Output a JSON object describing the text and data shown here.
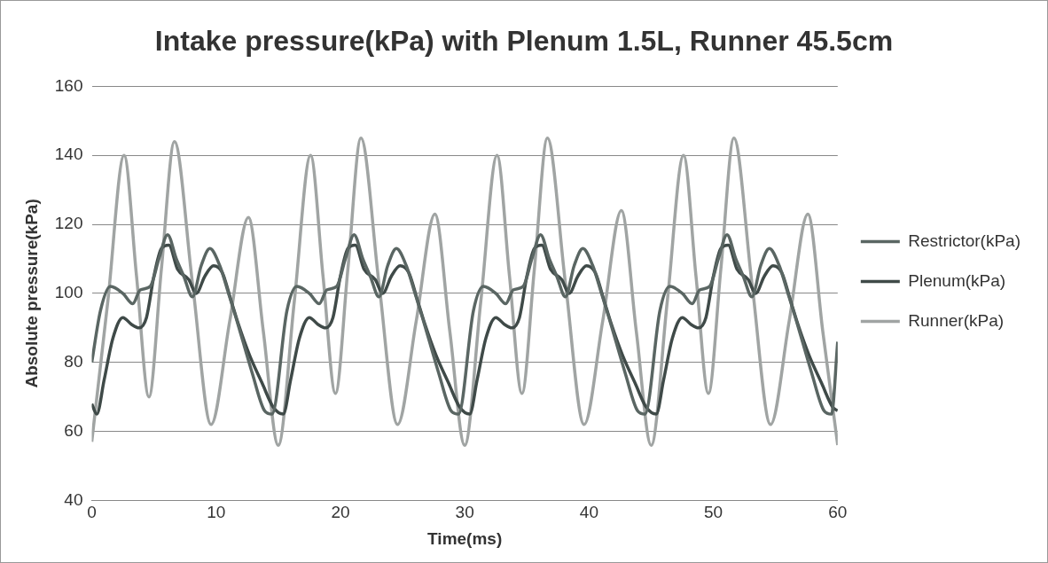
{
  "chart_data": {
    "type": "line",
    "title": "Intake pressure(kPa) with Plenum 1.5L, Runner 45.5cm",
    "xlabel": "Time(ms)",
    "ylabel": "Absolute pressure(kPa)",
    "xlim": [
      0,
      60
    ],
    "xticks": [
      0,
      10,
      20,
      30,
      40,
      50,
      60
    ],
    "ylim": [
      40,
      160
    ],
    "yticks": [
      40,
      60,
      80,
      100,
      120,
      140,
      160
    ],
    "grid": "y",
    "legend": "right",
    "marker": "none",
    "line_style": "solid",
    "series": [
      {
        "name": "Restrictor(kPa)",
        "color": "#5a6663",
        "x": [
          0,
          0.7,
          1.5,
          2.5,
          3.3,
          3.9,
          4.7,
          5.4,
          6.1,
          6.8,
          7.4,
          8.1,
          8.8,
          9.5,
          10.3,
          11,
          11.6,
          12.9,
          13.9,
          14.5,
          15.7,
          16.5,
          17.5,
          18.3,
          18.9,
          19.7,
          20.4,
          21.1,
          21.8,
          22.4,
          23.1,
          23.8,
          24.5,
          25.3,
          26,
          26.6,
          27.9,
          28.9,
          29.5,
          30.7,
          31.5,
          32.5,
          33.3,
          33.9,
          34.7,
          35.4,
          36.1,
          36.8,
          37.4,
          38.1,
          38.8,
          39.5,
          40.3,
          41,
          41.6,
          42.9,
          43.9,
          44.5,
          45.7,
          46.5,
          47.5,
          48.3,
          48.9,
          49.7,
          50.4,
          51.1,
          51.8,
          52.4,
          53.1,
          53.8,
          54.5,
          55.3,
          56,
          56.6,
          57.9,
          58.9,
          59.5,
          60
        ],
        "values": [
          80,
          95,
          102,
          100,
          97,
          101,
          102,
          110,
          117,
          110,
          105,
          99,
          108,
          113,
          108,
          100,
          93,
          77,
          66,
          65,
          95,
          102,
          100,
          97,
          101,
          102,
          110,
          117,
          110,
          105,
          99,
          108,
          113,
          108,
          100,
          93,
          77,
          66,
          65,
          95,
          102,
          100,
          97,
          101,
          102,
          110,
          117,
          110,
          105,
          99,
          108,
          113,
          108,
          100,
          93,
          77,
          66,
          65,
          95,
          102,
          100,
          97,
          101,
          102,
          110,
          117,
          110,
          105,
          99,
          108,
          113,
          108,
          100,
          93,
          77,
          66,
          65,
          86
        ]
      },
      {
        "name": "Plenum(kPa)",
        "color": "#3f4a48",
        "x": [
          0,
          0.4,
          1,
          1.7,
          2.5,
          3.2,
          3.8,
          4.4,
          5,
          5.6,
          6.2,
          6.9,
          7.8,
          8.4,
          9.1,
          9.8,
          10.5,
          11.2,
          11.8,
          12.7,
          13.7,
          14.6,
          15.4,
          16,
          16.7,
          17.5,
          18.2,
          18.8,
          19.4,
          20,
          20.6,
          21.2,
          21.9,
          22.8,
          23.4,
          24.1,
          24.8,
          25.5,
          26.2,
          26.8,
          27.7,
          28.7,
          29.6,
          30.4,
          31,
          31.7,
          32.5,
          33.2,
          33.8,
          34.4,
          35,
          35.6,
          36.2,
          36.9,
          37.8,
          38.4,
          39.1,
          39.8,
          40.5,
          41.2,
          41.8,
          42.7,
          43.7,
          44.6,
          45.4,
          46,
          46.7,
          47.5,
          48.2,
          48.8,
          49.4,
          50,
          50.6,
          51.2,
          51.9,
          52.8,
          53.4,
          54.1,
          54.8,
          55.5,
          56.2,
          56.8,
          57.7,
          58.7,
          59.6,
          60
        ],
        "values": [
          68,
          65,
          75,
          87,
          93,
          91,
          90,
          93,
          105,
          113,
          114,
          107,
          104,
          100,
          105,
          108,
          106,
          98,
          91,
          82,
          74,
          67,
          65,
          75,
          87,
          93,
          91,
          90,
          93,
          105,
          113,
          114,
          107,
          104,
          100,
          105,
          108,
          106,
          98,
          91,
          82,
          74,
          67,
          65,
          75,
          87,
          93,
          91,
          90,
          93,
          105,
          113,
          114,
          107,
          104,
          100,
          105,
          108,
          106,
          98,
          91,
          82,
          74,
          67,
          65,
          75,
          87,
          93,
          91,
          90,
          93,
          105,
          113,
          114,
          107,
          104,
          100,
          105,
          108,
          106,
          98,
          91,
          82,
          74,
          67,
          66
        ]
      },
      {
        "name": "Runner(kPa)",
        "color": "#a0a4a3",
        "x": [
          0,
          1.3,
          2.6,
          3.6,
          4.6,
          5.6,
          6.65,
          8.1,
          9.6,
          11.1,
          12.6,
          13.8,
          15,
          16.3,
          17.6,
          18.6,
          19.6,
          20.6,
          21.65,
          23.1,
          24.6,
          26.1,
          27.6,
          28.8,
          30,
          31.3,
          32.6,
          33.6,
          34.6,
          35.6,
          36.65,
          38.1,
          39.6,
          41.1,
          42.6,
          43.8,
          45,
          46.3,
          47.6,
          48.6,
          49.6,
          50.6,
          51.65,
          53.1,
          54.6,
          56.1,
          57.6,
          58.8,
          60
        ],
        "values": [
          57,
          98,
          140,
          105,
          70,
          107,
          144,
          103,
          62,
          92,
          122,
          89,
          56,
          98,
          140,
          105,
          71,
          107,
          145,
          103,
          62,
          92,
          123,
          89,
          56,
          98,
          140,
          105,
          71,
          107,
          145,
          103,
          62,
          92,
          124,
          89,
          56,
          98,
          140,
          105,
          71,
          107,
          145,
          103,
          62,
          92,
          123,
          89,
          56
        ]
      }
    ]
  }
}
